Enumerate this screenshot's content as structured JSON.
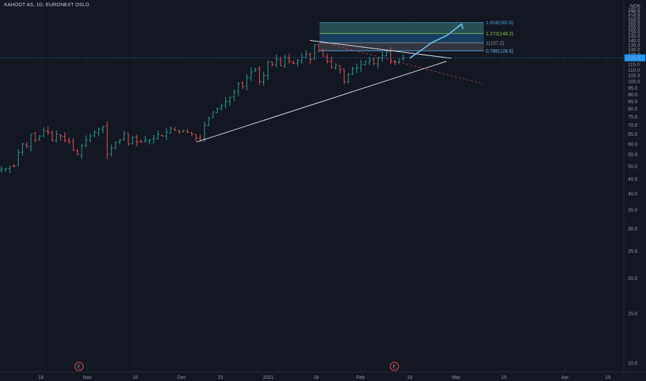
{
  "header": {
    "title": "KAHOOT AS, 1D, EURONEXT OSLO"
  },
  "y_axis": {
    "currency": "NOK",
    "ticks": [
      "180.0",
      "175.0",
      "170.0",
      "165.0",
      "160.0",
      "155.0",
      "150.0",
      "145.0",
      "140.0",
      "135.0",
      "130.0",
      "125.0",
      "120.0",
      "115.0",
      "110.0",
      "105.0",
      "100.0",
      "95.0",
      "90.0",
      "85.0",
      "80.0",
      "75.0",
      "70.0",
      "65.0",
      "60.0",
      "55.0",
      "50.0",
      "45.0",
      "40.0",
      "35.0",
      "30.0",
      "25.0",
      "20.0",
      "15.0",
      "10.0"
    ],
    "current_price": "121.4",
    "last_price_label": "121.4"
  },
  "x_axis": {
    "ticks": [
      "19",
      "Nov",
      "16",
      "Dec",
      "15",
      "2021",
      "18",
      "Feb",
      "15",
      "Mar",
      "15",
      "Apr",
      "19"
    ]
  },
  "earnings_markers": [
    "E",
    "E"
  ],
  "fib_levels": [
    {
      "label": "1.618(162.0)",
      "value": 162.0,
      "color": "#4aa3df"
    },
    {
      "label": "1.272(148.2)",
      "value": 148.2,
      "color": "#8bc34a"
    },
    {
      "label": "1(137.2)",
      "value": 137.2,
      "color": "#9e9e9e"
    },
    {
      "label": "0.786(128.6)",
      "value": 128.6,
      "color": "#64b5f6"
    }
  ],
  "colors": {
    "background": "#131722",
    "up": "#26a69a",
    "down": "#ef5350",
    "grid": "#1e222d",
    "projection": "#6fb7e8",
    "trendline": "#e0e3eb",
    "price_line": "#2196f3"
  },
  "chart_data": {
    "type": "ohlc",
    "title": "KAHOOT AS, 1D, EURONEXT OSLO",
    "ylabel": "NOK",
    "y_scale": "log",
    "ylim": [
      10,
      180
    ],
    "x_ticks": [
      "19",
      "Nov",
      "16",
      "Dec",
      "15",
      "2021",
      "18",
      "Feb",
      "15",
      "Mar",
      "15",
      "Apr",
      "19"
    ],
    "closes": [
      49,
      49,
      50,
      50,
      56,
      60,
      59,
      65,
      62,
      64,
      67,
      66,
      62,
      65,
      64,
      62,
      61,
      57,
      55,
      59,
      62,
      64,
      66,
      68,
      69,
      55,
      58,
      61,
      62,
      65,
      60,
      63,
      61,
      61,
      62,
      62,
      63,
      65,
      64,
      66,
      68,
      67,
      66,
      67,
      66,
      65,
      63,
      62,
      70,
      74,
      78,
      80,
      82,
      85,
      88,
      92,
      98,
      96,
      103,
      108,
      110,
      100,
      105,
      117,
      115,
      120,
      114,
      122,
      118,
      116,
      119,
      122,
      125,
      120,
      135,
      129,
      123,
      118,
      112,
      115,
      110,
      100,
      106,
      111,
      112,
      115,
      118,
      119,
      116,
      121,
      124,
      127,
      118,
      117,
      120,
      121.4
    ],
    "trendlines": [
      {
        "name": "rising support",
        "from": {
          "date": "2020-12-08",
          "price": 63
        },
        "to": {
          "date": "2021-02-23",
          "price": 120
        }
      },
      {
        "name": "falling resistance",
        "from": {
          "date": "2021-01-18",
          "price": 140
        },
        "to": {
          "date": "2021-02-24",
          "price": 121
        }
      }
    ],
    "fibonacci": [
      {
        "ratio": 1.618,
        "price": 162.0
      },
      {
        "ratio": 1.272,
        "price": 148.2
      },
      {
        "ratio": 1,
        "price": 137.2
      },
      {
        "ratio": 0.786,
        "price": 128.6
      }
    ],
    "projection_path": [
      121,
      138,
      146,
      160
    ],
    "last_price": 121.4
  }
}
